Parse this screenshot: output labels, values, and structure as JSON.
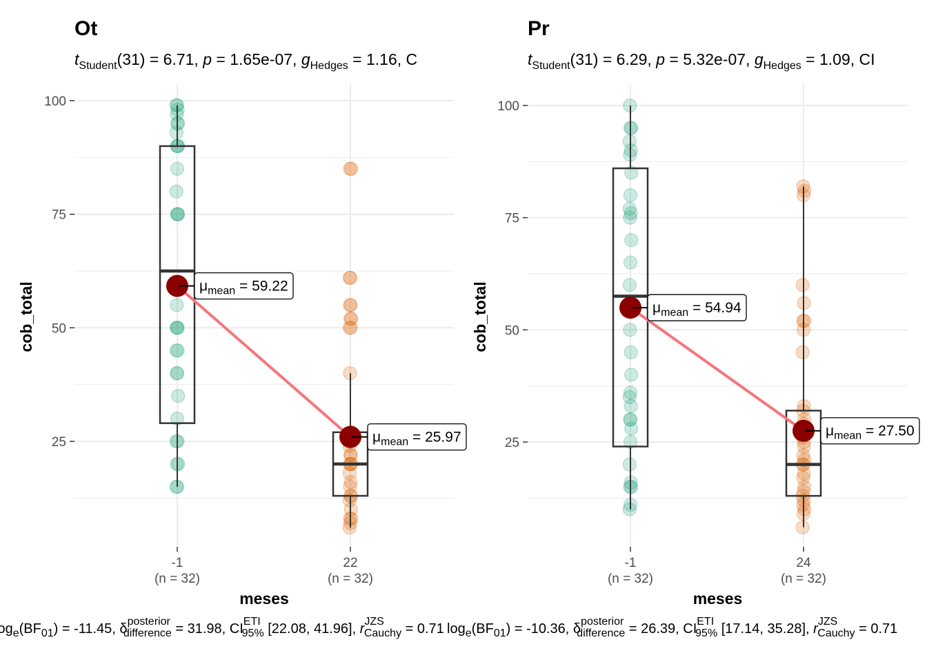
{
  "chart_data": [
    {
      "type": "violin-box-scatter",
      "title": "Ot",
      "subtitle": {
        "t_label": "t",
        "t_sub": "Student",
        "df": "(31)",
        "t_value": "= 6.71, ",
        "p_label": "p",
        "p_value": " = 1.65e-07, ",
        "g_label": "g",
        "g_sub": "Hedges",
        "g_value": " = 1.16, C"
      },
      "xlabel": "meses",
      "ylabel": "cob_total",
      "ylim": [
        0,
        104
      ],
      "yticks": [
        25,
        50,
        75,
        100
      ],
      "categories": [
        "-1",
        "22"
      ],
      "n_labels": [
        "(n = 32)",
        "(n = 32)"
      ],
      "means": [
        59.22,
        25.97
      ],
      "mean_labels": [
        "= 59.22",
        "= 25.97"
      ],
      "medians": [
        62.5,
        20
      ],
      "boxes": [
        {
          "q1": 29,
          "q3": 90,
          "whisker_low": 15,
          "whisker_high": 99
        },
        {
          "q1": 13,
          "q3": 27,
          "whisker_low": 6,
          "whisker_high": 40
        }
      ],
      "points": [
        [
          15,
          15,
          20,
          20,
          25,
          25,
          30,
          35,
          40,
          45,
          50,
          50,
          75,
          75,
          75,
          80,
          85,
          90,
          90,
          90,
          93,
          95,
          95,
          97,
          98,
          99,
          99,
          60,
          55,
          50,
          45,
          40
        ],
        [
          6,
          7,
          8,
          8,
          10,
          12,
          13,
          13,
          15,
          16,
          18,
          20,
          20,
          20,
          22,
          25,
          25,
          27,
          40,
          50,
          50,
          52,
          52,
          55,
          55,
          61,
          61,
          85,
          85,
          26,
          24,
          22
        ]
      ],
      "caption": {
        "lead": "log",
        "lead_sub": "e",
        "bf": "(BF",
        "bf_sub": "01",
        "bf_value": ") = -11.45, ",
        "delta": "δ",
        "delta_sup": "posterior",
        "delta_sub": "difference",
        "delta_value": " = 31.98, ",
        "ci": "CI",
        "ci_sup": "ETI",
        "ci_sub": "95%",
        "ci_value": " [22.08, 41.96], ",
        "r": "r",
        "r_sup": "JZS",
        "r_sub": "Cauchy",
        "r_value": " = 0.71"
      }
    },
    {
      "type": "violin-box-scatter",
      "title": "Pr",
      "subtitle": {
        "t_label": "t",
        "t_sub": "Student",
        "df": "(31)",
        "t_value": "= 6.29, ",
        "p_label": "p",
        "p_value": " = 5.32e-07, ",
        "g_label": "g",
        "g_sub": "Hedges",
        "g_value": " = 1.09, CI"
      },
      "xlabel": "meses",
      "ylabel": "cob_total",
      "ylim": [
        5,
        103
      ],
      "yticks": [
        25,
        50,
        75,
        100
      ],
      "categories": [
        "-1",
        "24"
      ],
      "n_labels": [
        "(n = 32)",
        "(n = 32)"
      ],
      "means": [
        54.94,
        27.5
      ],
      "mean_labels": [
        "= 54.94",
        "= 27.50"
      ],
      "medians": [
        57.5,
        20
      ],
      "boxes": [
        {
          "q1": 24,
          "q3": 86,
          "whisker_low": 10,
          "whisker_high": 100
        },
        {
          "q1": 13,
          "q3": 32,
          "whisker_low": 6,
          "whisker_high": 82
        }
      ],
      "points": [
        [
          10,
          11,
          15,
          15,
          16,
          20,
          25,
          28,
          30,
          33,
          35,
          36,
          40,
          50,
          55,
          60,
          65,
          70,
          75,
          76,
          77,
          80,
          85,
          89,
          90,
          92,
          95,
          95,
          100,
          45,
          55,
          30
        ],
        [
          6,
          9,
          10,
          11,
          12,
          13,
          14,
          15,
          17,
          18,
          20,
          20,
          21,
          22,
          25,
          26,
          28,
          30,
          32,
          33,
          45,
          50,
          52,
          52,
          56,
          60,
          80,
          81,
          82,
          24,
          27,
          29
        ]
      ],
      "caption": {
        "lead": "log",
        "lead_sub": "e",
        "bf": "(BF",
        "bf_sub": "01",
        "bf_value": ") = -10.36, ",
        "delta": "δ",
        "delta_sup": "posterior",
        "delta_sub": "difference",
        "delta_value": " = 26.39, ",
        "ci": "CI",
        "ci_sup": "ETI",
        "ci_sub": "95%",
        "ci_value": " [17.14, 35.28], ",
        "r": "r",
        "r_sup": "JZS",
        "r_sub": "Cauchy",
        "r_value": " = 0.71"
      }
    }
  ],
  "colors": {
    "group1": "#1b9e77",
    "group2": "#d95f02",
    "mean": "#8b0000",
    "line": "#f4767c",
    "grid": "#ebebeb",
    "box": "#333333"
  },
  "mu_symbol": "μ",
  "mu_sub": "mean"
}
